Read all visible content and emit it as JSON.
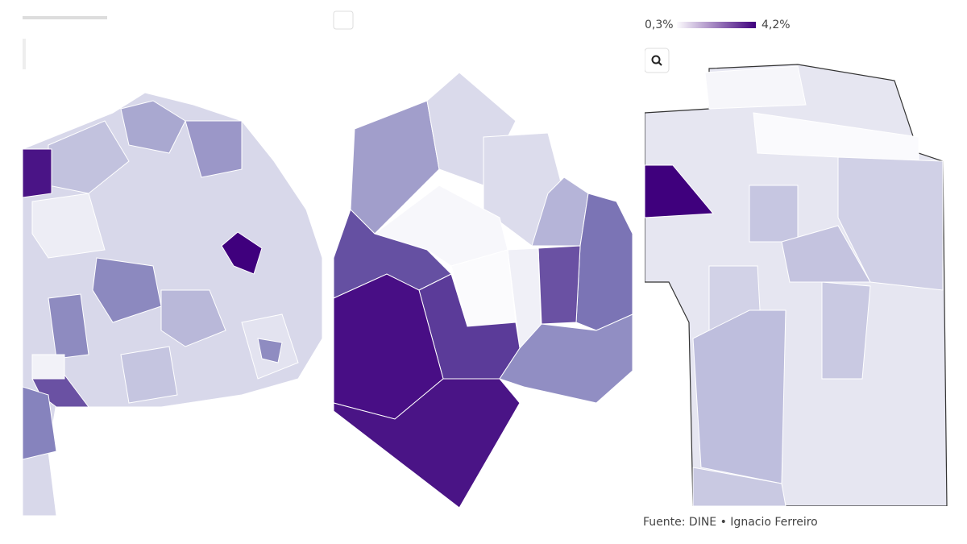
{
  "legend": {
    "min_label": "0,3%",
    "max_label": "4,2%"
  },
  "source": "Fuente: DINE • Ignacio Ferreiro"
}
